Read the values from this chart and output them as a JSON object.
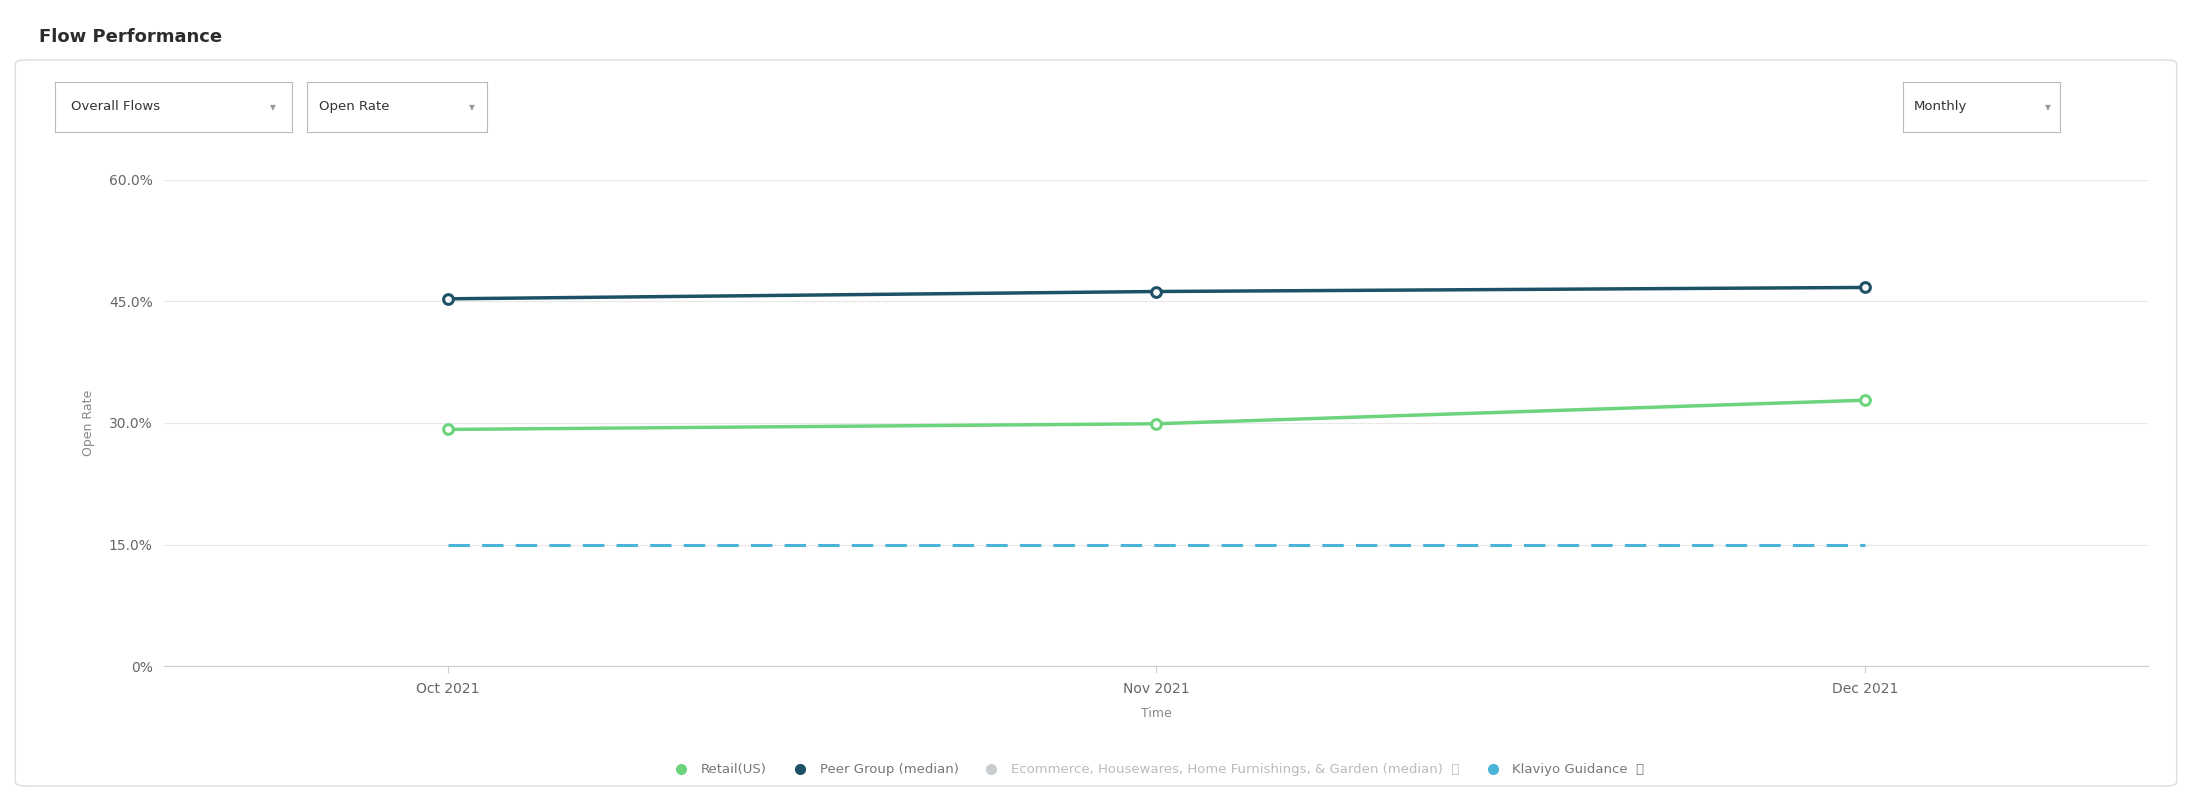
{
  "title": "Flow Performance",
  "xlabel": "Time",
  "ylabel": "Open Rate",
  "page_bg_color": "#f0f0f0",
  "card_bg_color": "#ffffff",
  "chart_bg_color": "#ffffff",
  "grid_color": "#e8e8e8",
  "x_labels": [
    "Oct 2021",
    "Nov 2021",
    "Dec 2021"
  ],
  "x_values": [
    0,
    1,
    2
  ],
  "retail_us": [
    0.292,
    0.299,
    0.328
  ],
  "peer_group": [
    0.453,
    0.462,
    0.467
  ],
  "klaviyo_guidance": [
    0.15,
    0.15,
    0.15
  ],
  "retail_color": "#6dd47e",
  "peer_group_color": "#1d5166",
  "klaviyo_color": "#4ab3d8",
  "ecommerce_color": "#c8cdd0",
  "ylim_min": 0.0,
  "ylim_max": 0.6,
  "yticks": [
    0.0,
    0.15,
    0.3,
    0.45,
    0.6
  ],
  "ytick_labels": [
    "0%",
    "15.0%",
    "30.0%",
    "45.0%",
    "60.0%"
  ],
  "dropdown1_text": "Overall Flows",
  "dropdown2_text": "Open Rate",
  "dropdown3_text": "Monthly",
  "title_fontsize": 13,
  "axis_label_fontsize": 9,
  "tick_fontsize": 10,
  "legend_fontsize": 9.5,
  "legend_labels": [
    "Retail(US)",
    "Peer Group (median)",
    "Ecommerce, Housewares, Home Furnishings, & Garden (median)  ⓘ",
    "Klaviyo Guidance  ⓘ"
  ],
  "legend_colors": [
    "#6dd47e",
    "#1d5166",
    "#c8cdd0",
    "#4ab3d8"
  ]
}
